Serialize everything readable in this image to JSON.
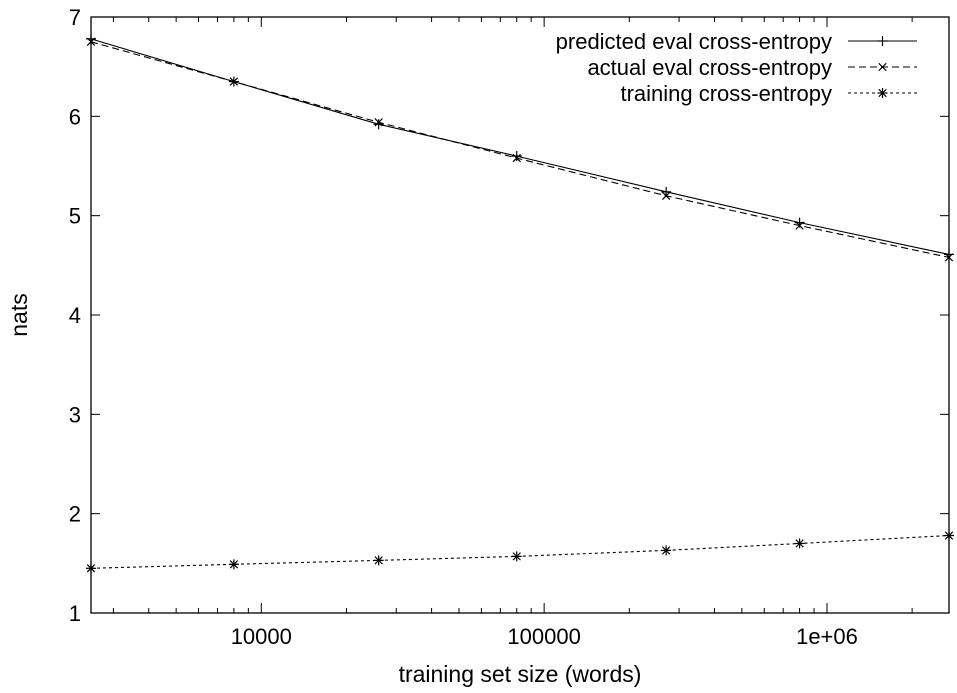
{
  "chart_data": {
    "type": "line",
    "title": "",
    "xlabel": "training set size (words)",
    "ylabel": "nats",
    "xscale": "log",
    "xlim": [
      2500,
      2700000
    ],
    "ylim": [
      1,
      7
    ],
    "xticks": [
      {
        "value": 10000,
        "label": "10000"
      },
      {
        "value": 100000,
        "label": "100000"
      },
      {
        "value": 1000000,
        "label": "1e+06"
      }
    ],
    "yticks": [
      {
        "value": 1,
        "label": "1"
      },
      {
        "value": 2,
        "label": "2"
      },
      {
        "value": 3,
        "label": "3"
      },
      {
        "value": 4,
        "label": "4"
      },
      {
        "value": 5,
        "label": "5"
      },
      {
        "value": 6,
        "label": "6"
      },
      {
        "value": 7,
        "label": "7"
      }
    ],
    "grid": false,
    "legend_position": "top-right",
    "series": [
      {
        "name": "predicted eval cross-entropy",
        "marker": "plus",
        "dash": "solid",
        "x": [
          2500,
          8000,
          26000,
          80000,
          270000,
          800000,
          2700000
        ],
        "y": [
          6.78,
          6.35,
          5.92,
          5.6,
          5.24,
          4.93,
          4.61
        ]
      },
      {
        "name": "actual eval cross-entropy",
        "marker": "cross",
        "dash": "dashed",
        "x": [
          2500,
          8000,
          26000,
          80000,
          270000,
          800000,
          2700000
        ],
        "y": [
          6.75,
          6.35,
          5.94,
          5.58,
          5.2,
          4.9,
          4.58
        ]
      },
      {
        "name": "training cross-entropy",
        "marker": "star",
        "dash": "dotted",
        "x": [
          2500,
          8000,
          26000,
          80000,
          270000,
          800000,
          2700000
        ],
        "y": [
          1.45,
          1.49,
          1.53,
          1.57,
          1.63,
          1.7,
          1.78
        ]
      }
    ]
  }
}
